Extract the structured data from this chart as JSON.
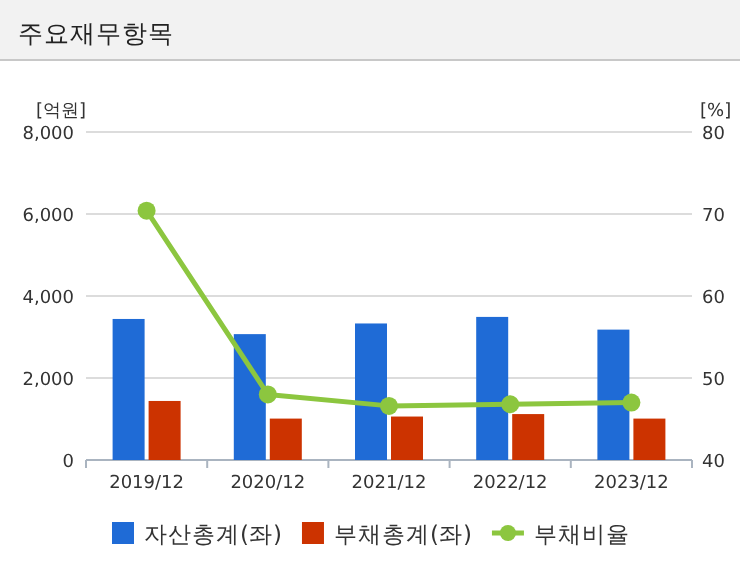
{
  "chart_data": {
    "type": "bar",
    "title": "주요재무항목",
    "ylabel": "[억원]",
    "y2label": "[%]",
    "categories": [
      "2019/12",
      "2020/12",
      "2021/12",
      "2022/12",
      "2023/12"
    ],
    "series": [
      {
        "name": "자산총계(좌)",
        "color": "#1f6bd6",
        "values": [
          3440,
          3070,
          3330,
          3490,
          3180
        ]
      },
      {
        "name": "부채총계(좌)",
        "color": "#cc3300",
        "values": [
          1440,
          1010,
          1060,
          1120,
          1010
        ]
      },
      {
        "name": "부채비율",
        "type": "line",
        "axis": "y2",
        "color": "#8cc63f",
        "values": [
          70.4,
          48.0,
          46.6,
          46.8,
          47.0
        ]
      }
    ],
    "ylim": [
      0,
      8000
    ],
    "yticks": [
      {
        "value": 0,
        "label": "0"
      },
      {
        "value": 2000,
        "label": "2,000"
      },
      {
        "value": 4000,
        "label": "4,000"
      },
      {
        "value": 6000,
        "label": "6,000"
      },
      {
        "value": 8000,
        "label": "8,000"
      }
    ],
    "y2lim": [
      40,
      80
    ],
    "y2ticks": [
      40,
      50,
      60,
      70,
      80
    ],
    "grid": "y",
    "legend": "bottom",
    "marker": "circle"
  }
}
